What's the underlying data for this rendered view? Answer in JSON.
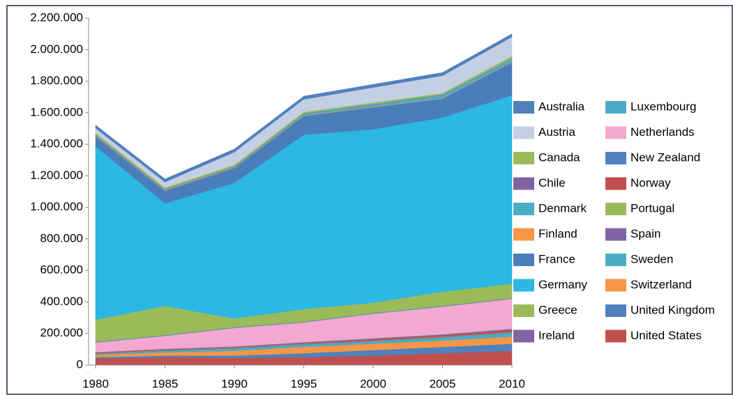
{
  "chart_data": {
    "type": "stacked_area",
    "x": [
      1980,
      1985,
      1990,
      1995,
      2000,
      2005,
      2010
    ],
    "xlim": [
      1980,
      2010
    ],
    "xticks": [
      1980,
      1985,
      1990,
      1995,
      2000,
      2005,
      2010
    ],
    "ylim": [
      0,
      2200000
    ],
    "yticks": [
      0,
      {
        "value": 200000,
        "label": "200.000"
      },
      {
        "value": 400000,
        "label": "400.000"
      },
      {
        "value": 600000,
        "label": "600.000"
      },
      {
        "value": 800000,
        "label": "800.000"
      },
      {
        "value": 1000000,
        "label": "1.000.000"
      },
      {
        "value": 1200000,
        "label": "1.200.000"
      },
      {
        "value": 1400000,
        "label": "1.400.000"
      },
      {
        "value": 1600000,
        "label": "1.600.000"
      },
      {
        "value": 1800000,
        "label": "1.800.000"
      },
      {
        "value": 2000000,
        "label": "2.000.000"
      },
      {
        "value": 2200000,
        "label": "2.200.000"
      }
    ],
    "grid": false,
    "legend": "right",
    "series": [
      {
        "name": "Australia",
        "color": "#4f81bd",
        "values": [
          20000,
          20000,
          20000,
          20000,
          20000,
          20000,
          20000
        ]
      },
      {
        "name": "Austria",
        "color": "#c5cfe3",
        "values": [
          30000,
          35000,
          80000,
          80000,
          95000,
          110000,
          120000
        ]
      },
      {
        "name": "Canada",
        "color": "#9bbb59",
        "values": [
          10000,
          10000,
          10000,
          10000,
          10000,
          10000,
          15000
        ]
      },
      {
        "name": "Chile",
        "color": "#8064a2",
        "values": [
          2000,
          2000,
          2000,
          2000,
          2000,
          2000,
          2000
        ]
      },
      {
        "name": "Denmark",
        "color": "#4bacc6",
        "values": [
          5000,
          5000,
          5000,
          10000,
          15000,
          20000,
          20000
        ]
      },
      {
        "name": "Finland",
        "color": "#f79646",
        "values": [
          3000,
          3000,
          3000,
          3000,
          3000,
          3000,
          3000
        ]
      },
      {
        "name": "France",
        "color": "#4a7ebb",
        "values": [
          65000,
          80000,
          95000,
          120000,
          140000,
          120000,
          210000
        ]
      },
      {
        "name": "Germany",
        "color": "#2bb8e2",
        "values": [
          1100000,
          650000,
          860000,
          1105000,
          1100000,
          1105000,
          1195000
        ]
      },
      {
        "name": "Greece",
        "color": "#9bbb59",
        "values": [
          140000,
          185000,
          55000,
          80000,
          65000,
          90000,
          90000
        ]
      },
      {
        "name": "Ireland",
        "color": "#8064a2",
        "values": [
          2000,
          2000,
          2000,
          2000,
          2000,
          2000,
          2000
        ]
      },
      {
        "name": "Luxembourg",
        "color": "#4bacc6",
        "values": [
          3000,
          3000,
          3000,
          3000,
          3000,
          3000,
          3000
        ]
      },
      {
        "name": "Netherlands",
        "color": "#f4a8cf",
        "values": [
          60000,
          82000,
          117000,
          125000,
          155000,
          175000,
          190000
        ]
      },
      {
        "name": "New Zealand",
        "color": "#4f81bd",
        "values": [
          3000,
          3000,
          3000,
          5000,
          5000,
          5000,
          5000
        ]
      },
      {
        "name": "Norway",
        "color": "#c0504d",
        "values": [
          5000,
          5000,
          5000,
          5000,
          10000,
          10000,
          15000
        ]
      },
      {
        "name": "Portugal",
        "color": "#9bbb59",
        "values": [
          2000,
          2000,
          2000,
          2000,
          2000,
          2000,
          2000
        ]
      },
      {
        "name": "Spain",
        "color": "#8064a2",
        "values": [
          2000,
          3000,
          3000,
          3000,
          3000,
          3000,
          3000
        ]
      },
      {
        "name": "Sweden",
        "color": "#4bacc6",
        "values": [
          5000,
          10000,
          15000,
          15000,
          15000,
          20000,
          25000
        ]
      },
      {
        "name": "Switzerland",
        "color": "#f79646",
        "values": [
          15000,
          20000,
          30000,
          40000,
          40000,
          40000,
          45000
        ]
      },
      {
        "name": "United Kingdom",
        "color": "#4f81bd",
        "values": [
          10000,
          10000,
          15000,
          25000,
          35000,
          40000,
          45000
        ]
      },
      {
        "name": "United States",
        "color": "#c0504d",
        "values": [
          40000,
          50000,
          45000,
          50000,
          60000,
          75000,
          90000
        ]
      }
    ]
  }
}
